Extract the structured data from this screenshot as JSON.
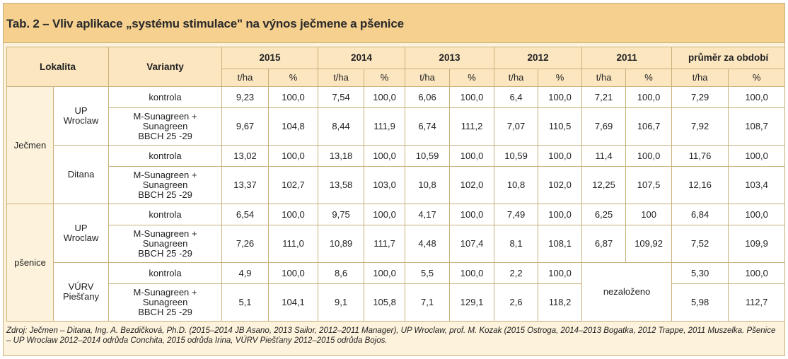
{
  "title": "Tab. 2 – Vliv aplikace „systému stimulace\" na výnos ječmene a pšenice",
  "header": {
    "lokalita": "Lokalita",
    "varianty": "Varianty",
    "years": [
      "2015",
      "2014",
      "2013",
      "2012",
      "2011",
      "průměr za období"
    ],
    "unit_t": "t/ha",
    "unit_pct": "%"
  },
  "groups": [
    {
      "crop": "Ječmen",
      "sites": [
        {
          "site": "UP\nWroclaw",
          "rows": [
            {
              "variant": "kontrola",
              "values": [
                "9,23",
                "100,0",
                "7,54",
                "100,0",
                "6,06",
                "100,0",
                "6,4",
                "100,0",
                "7,21",
                "100,0",
                "7,29",
                "100,0"
              ]
            },
            {
              "variant": "M-Sunagreen +\nSunagreen\nBBCH 25 -29",
              "values": [
                "9,67",
                "104,8",
                "8,44",
                "111,9",
                "6,74",
                "111,2",
                "7,07",
                "110,5",
                "7,69",
                "106,7",
                "7,92",
                "108,7"
              ]
            }
          ]
        },
        {
          "site": "Ditana",
          "rows": [
            {
              "variant": "kontrola",
              "values": [
                "13,02",
                "100,0",
                "13,18",
                "100,0",
                "10,59",
                "100,0",
                "10,59",
                "100,0",
                "11,4",
                "100,0",
                "11,76",
                "100,0"
              ]
            },
            {
              "variant": "M-Sunagreen +\nSunagreen\nBBCH 25 -29",
              "values": [
                "13,37",
                "102,7",
                "13,58",
                "103,0",
                "10,8",
                "102,0",
                "10,8",
                "102,0",
                "12,25",
                "107,5",
                "12,16",
                "103,4"
              ]
            }
          ]
        }
      ]
    },
    {
      "crop": "pšenice",
      "sites": [
        {
          "site": "UP\nWroclaw",
          "rows": [
            {
              "variant": "kontrola",
              "values": [
                "6,54",
                "100,0",
                "9,75",
                "100,0",
                "4,17",
                "100,0",
                "7,49",
                "100,0",
                "6,25",
                "100",
                "6,84",
                "100,0"
              ]
            },
            {
              "variant": "M-Sunagreen +\nSunagreen\nBBCH 25 -29",
              "values": [
                "7,26",
                "111,0",
                "10,89",
                "111,7",
                "4,48",
                "107,4",
                "8,1",
                "108,1",
                "6,87",
                "109,92",
                "7,52",
                "109,9"
              ]
            }
          ]
        },
        {
          "site": "VÚRV\nPiešťany",
          "merged_2011": "nezaloženo",
          "rows": [
            {
              "variant": "kontrola",
              "values": [
                "4,9",
                "100,0",
                "8,6",
                "100,0",
                "5,5",
                "100,0",
                "2,2",
                "100,0",
                "",
                "",
                "5,30",
                "100,0"
              ]
            },
            {
              "variant": "M-Sunagreen +\nSunagreen\nBBCH 25 -29",
              "values": [
                "5,1",
                "104,1",
                "9,1",
                "105,8",
                "7,1",
                "129,1",
                "2,6",
                "118,2",
                "",
                "",
                "5,98",
                "112,7"
              ]
            }
          ]
        }
      ]
    }
  ],
  "source": "Zdroj: Ječmen – Ditana, Ing. A. Bezdičková, Ph.D. (2015–2014 JB Asano, 2013 Sailor, 2012–2011 Manager), UP Wroclaw, prof. M. Kozak (2015 Ostroga, 2014–2013 Bogatka, 2012 Trappe, 2011 Muszelka. Pšenice – UP Wroclaw 2012–2014 odrůda Conchita, 2015 odrůda Irina, VÚRV Piešťany 2012–2015 odrůda Bojos."
}
